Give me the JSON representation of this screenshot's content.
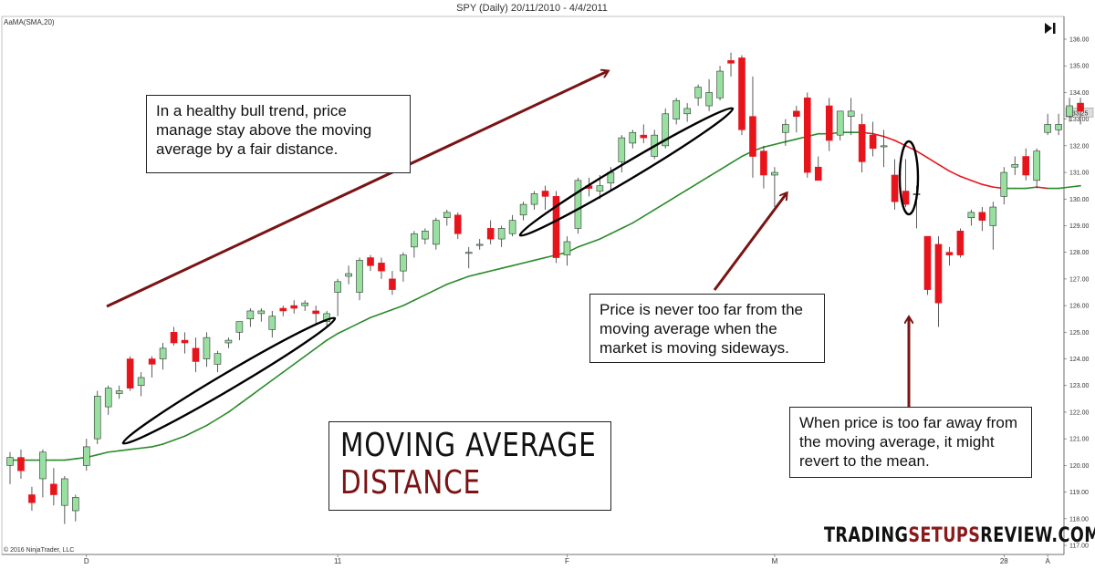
{
  "header": {
    "title": "SPY (Daily)  20/11/2010 - 4/4/2011",
    "indicator_label": "AaMA(SMA,20)"
  },
  "footer": {
    "copyright": "© 2016 NinjaTrader, LLC",
    "brand_part1": "TRADING",
    "brand_part2": "SETUPS",
    "brand_part3": "REVIEW.COM"
  },
  "title_box": {
    "line1": "MOVING AVERAGE",
    "line2": "DISTANCE"
  },
  "annotations": {
    "bull_trend": "In a healthy bull trend, price manage stay above the moving average by a fair distance.",
    "sideways": "Price is never too far from the moving average when the market is moving sideways.",
    "revert": "When price is too far away from the moving average, it might revert to the mean."
  },
  "current_price_label": "133.25",
  "colors": {
    "up_fill": "#98e0a0",
    "down_fill": "#e8141c",
    "candle_outline": "#333333",
    "sma_up": "#2a8a2a",
    "sma_down": "#e8141c",
    "arrow": "#7a1414",
    "title_accent": "#7a1414"
  },
  "chart_data": {
    "type": "candlestick",
    "title": "SPY (Daily)  20/11/2010 - 4/4/2011",
    "indicator": "SMA(20)",
    "xlabel": "",
    "ylabel": "",
    "ylim": [
      117.0,
      136.0
    ],
    "y_ticks": [
      117.0,
      118.0,
      119.0,
      120.0,
      121.0,
      122.0,
      123.0,
      124.0,
      125.0,
      126.0,
      127.0,
      128.0,
      129.0,
      130.0,
      131.0,
      132.0,
      133.0,
      134.0,
      135.0,
      136.0
    ],
    "x_tick_labels": [
      {
        "label": "D",
        "index": 7
      },
      {
        "label": "11",
        "index": 30
      },
      {
        "label": "F",
        "index": 51
      },
      {
        "label": "M",
        "index": 70
      },
      {
        "label": "28",
        "index": 91
      },
      {
        "label": "A",
        "index": 95
      }
    ],
    "grid": false,
    "legend": null,
    "candles": [
      {
        "o": 120.0,
        "h": 120.5,
        "l": 119.3,
        "c": 120.3
      },
      {
        "o": 120.3,
        "h": 120.6,
        "l": 119.5,
        "c": 119.8
      },
      {
        "o": 118.9,
        "h": 119.2,
        "l": 118.3,
        "c": 118.6
      },
      {
        "o": 119.5,
        "h": 120.6,
        "l": 118.8,
        "c": 120.5
      },
      {
        "o": 119.3,
        "h": 119.9,
        "l": 118.5,
        "c": 118.9
      },
      {
        "o": 118.5,
        "h": 119.6,
        "l": 117.8,
        "c": 119.5
      },
      {
        "o": 118.3,
        "h": 118.9,
        "l": 117.9,
        "c": 118.8
      },
      {
        "o": 120.0,
        "h": 121.0,
        "l": 119.8,
        "c": 120.7
      },
      {
        "o": 121.0,
        "h": 122.8,
        "l": 120.8,
        "c": 122.6
      },
      {
        "o": 122.2,
        "h": 123.0,
        "l": 121.9,
        "c": 122.9
      },
      {
        "o": 122.7,
        "h": 123.0,
        "l": 122.5,
        "c": 122.8
      },
      {
        "o": 124.0,
        "h": 124.1,
        "l": 122.8,
        "c": 122.9
      },
      {
        "o": 123.0,
        "h": 123.5,
        "l": 122.6,
        "c": 123.3
      },
      {
        "o": 124.0,
        "h": 124.1,
        "l": 123.3,
        "c": 123.8
      },
      {
        "o": 124.0,
        "h": 124.6,
        "l": 123.6,
        "c": 124.4
      },
      {
        "o": 125.0,
        "h": 125.2,
        "l": 124.5,
        "c": 124.6
      },
      {
        "o": 124.7,
        "h": 125.0,
        "l": 124.2,
        "c": 124.6
      },
      {
        "o": 124.4,
        "h": 124.8,
        "l": 123.5,
        "c": 123.9
      },
      {
        "o": 124.0,
        "h": 125.0,
        "l": 123.7,
        "c": 124.8
      },
      {
        "o": 123.8,
        "h": 124.3,
        "l": 123.5,
        "c": 124.2
      },
      {
        "o": 124.6,
        "h": 124.8,
        "l": 124.4,
        "c": 124.7
      },
      {
        "o": 125.0,
        "h": 125.4,
        "l": 124.7,
        "c": 125.4
      },
      {
        "o": 125.5,
        "h": 125.9,
        "l": 125.2,
        "c": 125.8
      },
      {
        "o": 125.7,
        "h": 125.9,
        "l": 125.4,
        "c": 125.8
      },
      {
        "o": 125.1,
        "h": 125.8,
        "l": 124.8,
        "c": 125.6
      },
      {
        "o": 125.9,
        "h": 126.0,
        "l": 125.6,
        "c": 125.8
      },
      {
        "o": 126.0,
        "h": 126.2,
        "l": 125.7,
        "c": 125.9
      },
      {
        "o": 126.0,
        "h": 126.2,
        "l": 125.8,
        "c": 126.1
      },
      {
        "o": 125.8,
        "h": 126.0,
        "l": 125.3,
        "c": 125.7
      },
      {
        "o": 125.4,
        "h": 125.8,
        "l": 125.2,
        "c": 125.7
      },
      {
        "o": 126.5,
        "h": 127.0,
        "l": 125.6,
        "c": 126.9
      },
      {
        "o": 127.1,
        "h": 127.5,
        "l": 126.8,
        "c": 127.2
      },
      {
        "o": 126.5,
        "h": 127.8,
        "l": 126.2,
        "c": 127.7
      },
      {
        "o": 127.8,
        "h": 127.9,
        "l": 127.3,
        "c": 127.5
      },
      {
        "o": 127.6,
        "h": 127.8,
        "l": 127.0,
        "c": 127.3
      },
      {
        "o": 127.0,
        "h": 127.3,
        "l": 126.4,
        "c": 126.6
      },
      {
        "o": 127.3,
        "h": 128.0,
        "l": 126.9,
        "c": 127.9
      },
      {
        "o": 128.2,
        "h": 128.8,
        "l": 127.8,
        "c": 128.7
      },
      {
        "o": 128.5,
        "h": 128.9,
        "l": 128.3,
        "c": 128.8
      },
      {
        "o": 128.3,
        "h": 129.3,
        "l": 128.1,
        "c": 129.2
      },
      {
        "o": 129.3,
        "h": 129.6,
        "l": 129.0,
        "c": 129.5
      },
      {
        "o": 129.4,
        "h": 129.5,
        "l": 128.5,
        "c": 128.7
      },
      {
        "o": 128.0,
        "h": 128.2,
        "l": 127.4,
        "c": 128.0
      },
      {
        "o": 128.3,
        "h": 128.5,
        "l": 128.1,
        "c": 128.3
      },
      {
        "o": 128.9,
        "h": 129.2,
        "l": 128.3,
        "c": 128.5
      },
      {
        "o": 128.5,
        "h": 129.0,
        "l": 128.2,
        "c": 128.9
      },
      {
        "o": 128.7,
        "h": 129.4,
        "l": 128.6,
        "c": 129.2
      },
      {
        "o": 129.4,
        "h": 129.9,
        "l": 129.2,
        "c": 129.8
      },
      {
        "o": 129.8,
        "h": 130.3,
        "l": 129.6,
        "c": 130.2
      },
      {
        "o": 130.3,
        "h": 130.5,
        "l": 129.6,
        "c": 130.1
      },
      {
        "o": 130.1,
        "h": 130.3,
        "l": 127.6,
        "c": 127.8
      },
      {
        "o": 127.9,
        "h": 128.6,
        "l": 127.5,
        "c": 128.4
      },
      {
        "o": 128.9,
        "h": 130.8,
        "l": 128.7,
        "c": 130.7
      },
      {
        "o": 130.5,
        "h": 130.8,
        "l": 130.1,
        "c": 130.4
      },
      {
        "o": 130.3,
        "h": 130.9,
        "l": 130.0,
        "c": 130.5
      },
      {
        "o": 130.6,
        "h": 131.2,
        "l": 130.3,
        "c": 131.0
      },
      {
        "o": 131.4,
        "h": 132.4,
        "l": 131.0,
        "c": 132.3
      },
      {
        "o": 132.1,
        "h": 132.6,
        "l": 131.9,
        "c": 132.5
      },
      {
        "o": 132.4,
        "h": 132.8,
        "l": 132.1,
        "c": 132.3
      },
      {
        "o": 131.6,
        "h": 132.6,
        "l": 131.5,
        "c": 132.4
      },
      {
        "o": 132.0,
        "h": 133.4,
        "l": 131.9,
        "c": 133.2
      },
      {
        "o": 133.0,
        "h": 133.8,
        "l": 132.8,
        "c": 133.7
      },
      {
        "o": 133.2,
        "h": 133.6,
        "l": 132.9,
        "c": 133.4
      },
      {
        "o": 133.8,
        "h": 134.3,
        "l": 133.5,
        "c": 134.2
      },
      {
        "o": 133.5,
        "h": 134.5,
        "l": 133.3,
        "c": 134.0
      },
      {
        "o": 133.8,
        "h": 135.0,
        "l": 133.7,
        "c": 134.8
      },
      {
        "o": 135.2,
        "h": 135.5,
        "l": 134.6,
        "c": 135.1
      },
      {
        "o": 135.3,
        "h": 135.4,
        "l": 132.4,
        "c": 132.6
      },
      {
        "o": 133.1,
        "h": 134.6,
        "l": 130.8,
        "c": 131.6
      },
      {
        "o": 131.8,
        "h": 132.0,
        "l": 130.4,
        "c": 130.9
      },
      {
        "o": 130.9,
        "h": 131.2,
        "l": 129.7,
        "c": 131.0
      },
      {
        "o": 132.5,
        "h": 133.0,
        "l": 132.0,
        "c": 132.8
      },
      {
        "o": 133.3,
        "h": 133.5,
        "l": 132.5,
        "c": 133.1
      },
      {
        "o": 133.8,
        "h": 134.0,
        "l": 130.8,
        "c": 131.0
      },
      {
        "o": 131.2,
        "h": 131.6,
        "l": 130.7,
        "c": 130.7
      },
      {
        "o": 133.5,
        "h": 133.8,
        "l": 131.8,
        "c": 132.2
      },
      {
        "o": 132.4,
        "h": 133.3,
        "l": 132.2,
        "c": 133.3
      },
      {
        "o": 133.1,
        "h": 133.8,
        "l": 132.4,
        "c": 133.3
      },
      {
        "o": 132.8,
        "h": 133.2,
        "l": 131.0,
        "c": 131.4
      },
      {
        "o": 132.4,
        "h": 132.9,
        "l": 131.6,
        "c": 131.9
      },
      {
        "o": 132.0,
        "h": 132.6,
        "l": 131.2,
        "c": 132.0
      },
      {
        "o": 130.9,
        "h": 131.5,
        "l": 129.6,
        "c": 129.9
      },
      {
        "o": 130.3,
        "h": 131.5,
        "l": 129.7,
        "c": 129.8
      },
      {
        "o": 130.2,
        "h": 130.5,
        "l": 128.9,
        "c": 130.2
      },
      {
        "o": 128.6,
        "h": 128.6,
        "l": 126.4,
        "c": 126.6
      },
      {
        "o": 128.3,
        "h": 128.6,
        "l": 125.2,
        "c": 126.1
      },
      {
        "o": 128.0,
        "h": 128.2,
        "l": 127.5,
        "c": 127.9
      },
      {
        "o": 128.8,
        "h": 128.9,
        "l": 127.8,
        "c": 127.9
      },
      {
        "o": 129.3,
        "h": 129.6,
        "l": 129.0,
        "c": 129.5
      },
      {
        "o": 129.5,
        "h": 129.7,
        "l": 128.8,
        "c": 129.2
      },
      {
        "o": 129.0,
        "h": 129.9,
        "l": 128.1,
        "c": 129.7
      },
      {
        "o": 130.1,
        "h": 131.2,
        "l": 129.8,
        "c": 131.0
      },
      {
        "o": 131.2,
        "h": 131.6,
        "l": 130.9,
        "c": 131.3
      },
      {
        "o": 131.6,
        "h": 131.9,
        "l": 130.7,
        "c": 130.9
      },
      {
        "o": 130.7,
        "h": 131.9,
        "l": 130.4,
        "c": 131.8
      },
      {
        "o": 132.5,
        "h": 133.2,
        "l": 132.4,
        "c": 132.8
      },
      {
        "o": 132.6,
        "h": 133.2,
        "l": 132.4,
        "c": 132.8
      },
      {
        "o": 133.1,
        "h": 133.8,
        "l": 132.9,
        "c": 133.5
      },
      {
        "o": 133.6,
        "h": 133.8,
        "l": 132.8,
        "c": 133.3
      }
    ],
    "sma_20": [
      120.2,
      120.2,
      120.2,
      120.2,
      120.2,
      120.2,
      120.25,
      120.3,
      120.4,
      120.5,
      120.55,
      120.6,
      120.65,
      120.7,
      120.8,
      120.95,
      121.1,
      121.3,
      121.5,
      121.75,
      122.0,
      122.3,
      122.6,
      122.9,
      123.2,
      123.5,
      123.8,
      124.1,
      124.4,
      124.7,
      124.95,
      125.15,
      125.35,
      125.55,
      125.7,
      125.85,
      126.0,
      126.2,
      126.4,
      126.6,
      126.8,
      126.95,
      127.1,
      127.2,
      127.3,
      127.4,
      127.5,
      127.6,
      127.7,
      127.8,
      127.9,
      128.0,
      128.2,
      128.35,
      128.5,
      128.7,
      128.9,
      129.1,
      129.35,
      129.6,
      129.85,
      130.1,
      130.35,
      130.6,
      130.85,
      131.1,
      131.35,
      131.6,
      131.8,
      131.95,
      132.05,
      132.15,
      132.25,
      132.35,
      132.45,
      132.45,
      132.5,
      132.5,
      132.5,
      132.45,
      132.35,
      132.2,
      132.0,
      131.8,
      131.55,
      131.3,
      131.05,
      130.85,
      130.7,
      130.55,
      130.45,
      130.4,
      130.4,
      130.4,
      130.45,
      130.4,
      130.4,
      130.45,
      130.5
    ],
    "current_price": 133.25
  }
}
